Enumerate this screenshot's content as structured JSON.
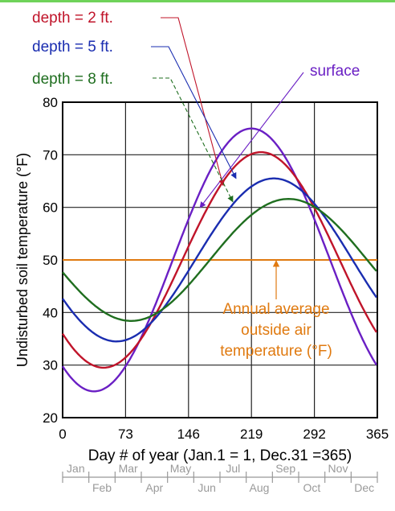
{
  "chart_data": {
    "type": "line",
    "title": "",
    "xlabel": "Day # of year (Jan.1 = 1, Dec.31 =365)",
    "ylabel": "Undisturbed soil temperature (°F)",
    "xlim": [
      0,
      365
    ],
    "ylim": [
      20,
      80
    ],
    "x_ticks": [
      0,
      73,
      146,
      219,
      292,
      365
    ],
    "y_ticks": [
      20,
      30,
      40,
      50,
      60,
      70,
      80
    ],
    "grid": true,
    "months_upper": [
      "Jan",
      "Mar",
      "May",
      "Jul",
      "Sep",
      "Nov"
    ],
    "months_lower": [
      "Feb",
      "Apr",
      "Jun",
      "Aug",
      "Oct",
      "Dec"
    ],
    "series": [
      {
        "name": "surface",
        "color": "#6a1fc4",
        "mean": 50,
        "amplitude": 25,
        "peak_day": 219
      },
      {
        "name": "depth = 2 ft.",
        "color": "#c0142a",
        "mean": 50,
        "amplitude": 20.5,
        "peak_day": 230
      },
      {
        "name": "depth = 5 ft.",
        "color": "#1a2db0",
        "mean": 50,
        "amplitude": 15.5,
        "peak_day": 245
      },
      {
        "name": "depth = 8 ft.",
        "color": "#1f6e1f",
        "mean": 50,
        "amplitude": 11.6,
        "peak_day": 262
      }
    ],
    "reference_line": {
      "value": 50,
      "color": "#e07a10",
      "label_lines": [
        "Annual average",
        "outside air",
        "temperature (°F)"
      ]
    }
  }
}
